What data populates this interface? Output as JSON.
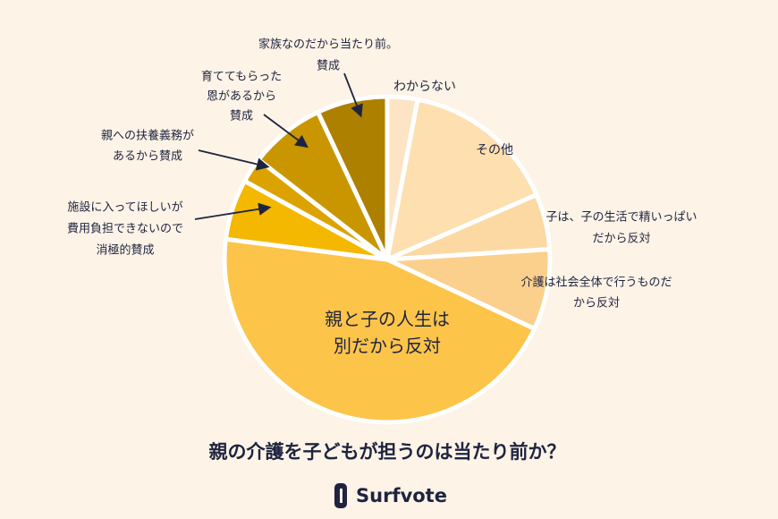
{
  "chart_data": {
    "type": "pie",
    "title": "親の介護を子どもが担うのは当たり前か？",
    "categories": [
      [
        "わからない"
      ],
      [
        "その他"
      ],
      [
        "子は、子の生活で精いっぱい",
        "だから反対"
      ],
      [
        "介護は社会全体で行うものだ",
        "から反対"
      ],
      [
        "親と子の人生は",
        "別だから反対"
      ],
      [
        "施設に入ってほしいが",
        "費用負担できないので",
        "消極的賛成"
      ],
      [
        "親への扶養義務が",
        "あるから賛成"
      ],
      [
        "育ててもらった",
        "恩があるから",
        "賛成"
      ],
      [
        "家族なのだから当たり前。",
        "賛成"
      ]
    ],
    "values": [
      3,
      15.5,
      5.5,
      8,
      45,
      6,
      2.5,
      7.5,
      7
    ],
    "colors": [
      "#fde4c4",
      "#fddfb0",
      "#fcd9a2",
      "#fbd08c",
      "#fdc44a",
      "#f4b800",
      "#dca300",
      "#c99600",
      "#ae8000"
    ]
  },
  "logo": "Surfvote"
}
